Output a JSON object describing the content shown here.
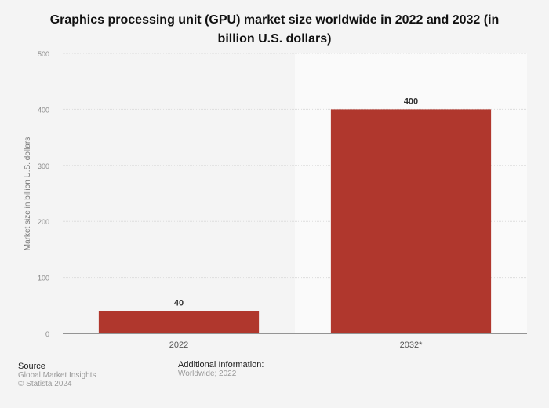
{
  "chart_data": {
    "type": "bar",
    "title": "Graphics processing unit (GPU) market size worldwide in 2022 and 2032 (in billion U.S. dollars)",
    "categories": [
      "2022",
      "2032*"
    ],
    "values": [
      40,
      400
    ],
    "data_labels": [
      "40",
      "400"
    ],
    "xlabel": "",
    "ylabel": "Market size in billion U.S. dollars",
    "ylim": [
      0,
      500
    ],
    "yticks": [
      0,
      100,
      200,
      300,
      400,
      500
    ],
    "grid": true,
    "bar_color": "#b0372d",
    "forecast_highlight_category": "2032*"
  },
  "footer": {
    "source_heading": "Source",
    "source_name": "Global Market Insights",
    "copyright": "© Statista 2024",
    "additional_heading": "Additional Information:",
    "additional_text": "Worldwide; 2022"
  }
}
